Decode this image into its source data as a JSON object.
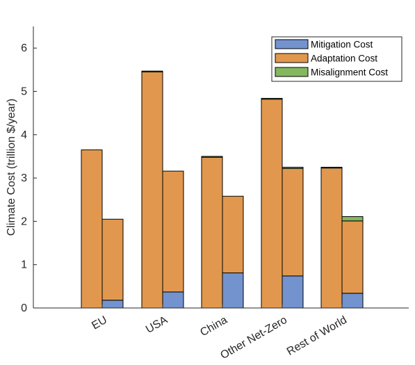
{
  "chart_data": {
    "type": "bar",
    "stacked": true,
    "title": "",
    "ylabel": "Climate Cost (trillion $/year)",
    "xlabel": "",
    "ylim": [
      0,
      6.5
    ],
    "yticks": [
      0,
      1,
      2,
      3,
      4,
      5,
      6
    ],
    "categories": [
      "EU",
      "USA",
      "China",
      "Other Net-Zero",
      "Rest of World"
    ],
    "bars_per_category": 2,
    "legend_position": "top-right",
    "grid": false,
    "series": [
      {
        "name": "Mitigation Cost",
        "color": "#7393cf",
        "values": [
          [
            0.0,
            0.18
          ],
          [
            0.0,
            0.37
          ],
          [
            0.0,
            0.81
          ],
          [
            0.0,
            0.74
          ],
          [
            0.0,
            0.34
          ]
        ]
      },
      {
        "name": "Adaptation Cost",
        "color": "#e1984e",
        "values": [
          [
            3.65,
            1.87
          ],
          [
            5.45,
            2.79
          ],
          [
            3.48,
            1.77
          ],
          [
            4.82,
            2.48
          ],
          [
            3.23,
            1.67
          ]
        ]
      },
      {
        "name": "Misalignment Cost",
        "color": "#86b75f",
        "values": [
          [
            0.0,
            0.0
          ],
          [
            0.02,
            0.0
          ],
          [
            0.02,
            0.0
          ],
          [
            0.02,
            0.03
          ],
          [
            0.02,
            0.1
          ]
        ]
      }
    ]
  }
}
